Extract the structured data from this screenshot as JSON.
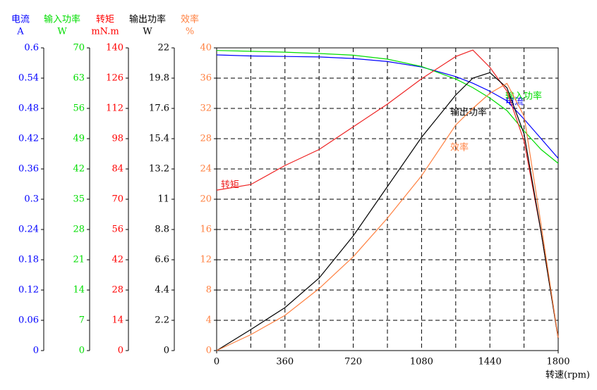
{
  "chart_data": {
    "type": "line",
    "x_label": "转速(rpm)",
    "x": [
      0,
      180,
      360,
      540,
      720,
      900,
      1080,
      1260,
      1350,
      1440,
      1530,
      1620,
      1710,
      1800
    ],
    "xlim": [
      0,
      1800
    ],
    "xticks": [
      0,
      360,
      720,
      1080,
      1440,
      1800
    ],
    "x_grid": [
      180,
      540,
      900,
      1260,
      1620
    ],
    "grid": true,
    "axes": [
      {
        "name": "电流",
        "unit": "A",
        "color": "#0000ff",
        "ylim": [
          0,
          0.6
        ],
        "yticks": [
          0,
          0.06,
          0.12,
          0.18,
          0.24,
          0.3,
          0.36,
          0.42,
          0.48,
          0.54,
          0.6
        ]
      },
      {
        "name": "输入功率",
        "unit": "W",
        "color": "#00dd00",
        "ylim": [
          0,
          70
        ],
        "yticks": [
          0,
          7,
          14,
          21,
          28,
          35,
          42,
          49,
          56,
          63,
          70
        ]
      },
      {
        "name": "转矩",
        "unit": "mN.m",
        "color": "#ff0000",
        "ylim": [
          0,
          140
        ],
        "yticks": [
          0,
          14,
          28,
          42,
          56,
          70,
          84,
          98,
          112,
          126,
          140
        ]
      },
      {
        "name": "输出功率",
        "unit": "W",
        "color": "#000000",
        "ylim": [
          0,
          22
        ],
        "yticks": [
          0,
          2.2,
          4.4,
          6.6,
          8.8,
          11,
          13.2,
          15.4,
          17.6,
          19.8,
          22
        ]
      },
      {
        "name": "效率",
        "unit": "%",
        "color": "#ff8040",
        "ylim": [
          0,
          40
        ],
        "yticks": [
          0,
          4,
          8,
          12,
          16,
          20,
          24,
          28,
          32,
          36,
          40
        ]
      }
    ],
    "series": [
      {
        "name": "电流",
        "axis": 0,
        "color": "#0000ff",
        "values": [
          0.586,
          0.584,
          0.583,
          0.582,
          0.579,
          0.573,
          0.562,
          0.543,
          0.53,
          0.514,
          0.495,
          0.459,
          0.42,
          0.381
        ]
      },
      {
        "name": "输入功率",
        "axis": 1,
        "color": "#00dd00",
        "values": [
          69.4,
          69.2,
          69,
          68.7,
          68.3,
          67.4,
          65.7,
          62.8,
          60.8,
          58.4,
          55.5,
          50.8,
          46.5,
          43.3
        ]
      },
      {
        "name": "转矩",
        "axis": 2,
        "color": "#ee2222",
        "values": [
          74.2,
          76.8,
          85.6,
          93,
          103.5,
          114,
          125.7,
          136,
          139,
          131,
          120,
          97,
          54.7,
          5.9
        ]
      },
      {
        "name": "输出功率",
        "axis": 3,
        "color": "#000000",
        "values": [
          0,
          1.53,
          3.12,
          5.27,
          8.34,
          11.92,
          15.5,
          18.57,
          19.8,
          20.2,
          19.1,
          15.76,
          8.6,
          0.9
        ]
      },
      {
        "name": "效率",
        "axis": 4,
        "color": "#ff8040",
        "values": [
          0,
          2.1,
          4.65,
          8.2,
          12.4,
          17.5,
          23.1,
          29.8,
          32,
          34,
          35.3,
          31,
          16.6,
          1.7
        ]
      }
    ]
  }
}
